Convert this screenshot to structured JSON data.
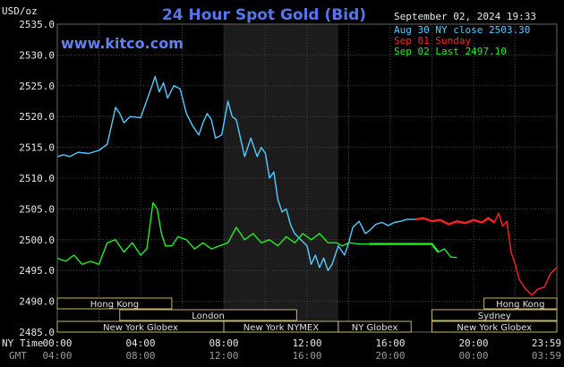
{
  "header": {
    "unit": "USD/oz",
    "title": "24 Hour Spot Gold (Bid)",
    "timestamp": "September 02, 2024 19:33",
    "site": "www.kitco.com"
  },
  "colors": {
    "aug30": "#55ccff",
    "sep01": "#ff2222",
    "sep02": "#22ee22",
    "grid": "#444444",
    "title": "#5577ee"
  },
  "legend": [
    {
      "label": "Aug 30 NY close 2503.30",
      "color": "#55ccff"
    },
    {
      "label": "Sep 01 Sunday",
      "color": "#ff2222"
    },
    {
      "label": "Sep 02 Last 2497.10",
      "color": "#22ee22"
    }
  ],
  "axis_labels": {
    "ny_time": "NY Time",
    "gmt": "GMT"
  },
  "sessions": [
    {
      "label": "Hong Kong",
      "start": 0,
      "end": 5.5,
      "row": 0
    },
    {
      "label": "London",
      "start": 3,
      "end": 11.5,
      "row": 1
    },
    {
      "label": "New York Globex",
      "start": 0,
      "end": 8,
      "row": 2
    },
    {
      "label": "New York NYMEX",
      "start": 8,
      "end": 13.5,
      "row": 2
    },
    {
      "label": "NY Globex",
      "start": 13.5,
      "end": 17,
      "row": 2
    },
    {
      "label": "Hong Kong",
      "start": 20.5,
      "end": 24,
      "row": 0
    },
    {
      "label": "Sydney",
      "start": 18,
      "end": 24,
      "row": 1
    },
    {
      "label": "New York Globex",
      "start": 18,
      "end": 24,
      "row": 2
    }
  ],
  "chart_data": {
    "type": "line",
    "title": "24 Hour Spot Gold (Bid)",
    "ylabel": "USD/oz",
    "ylim": [
      2485,
      2535
    ],
    "yticks": [
      "2485.0",
      "2490.0",
      "2495.0",
      "2500.0",
      "2505.0",
      "2510.0",
      "2515.0",
      "2520.0",
      "2525.0",
      "2530.0",
      "2535.0"
    ],
    "xlim": [
      0,
      24
    ],
    "xticks_ny": [
      "00:00",
      "04:00",
      "08:00",
      "12:00",
      "16:00",
      "20:00",
      "23:59"
    ],
    "xticks_gmt": [
      "04:00",
      "08:00",
      "12:00",
      "16:00",
      "20:00",
      "00:00",
      "03:59"
    ],
    "nymex_shade": [
      8,
      13.5
    ],
    "grid": true,
    "legend_placement": "top-right",
    "series": [
      {
        "name": "Aug 30 NY close 2503.30",
        "x": [
          0,
          0.3,
          0.6,
          1,
          1.5,
          2,
          2.4,
          2.8,
          3,
          3.2,
          3.5,
          4,
          4.5,
          4.7,
          4.9,
          5.1,
          5.3,
          5.6,
          5.9,
          6.2,
          6.5,
          6.8,
          7,
          7.2,
          7.4,
          7.6,
          7.9,
          8.2,
          8.4,
          8.6,
          8.8,
          9,
          9.3,
          9.6,
          9.8,
          10,
          10.2,
          10.4,
          10.6,
          10.8,
          11,
          11.2,
          11.4,
          11.7,
          12,
          12.2,
          12.4,
          12.6,
          12.8,
          13,
          13.2,
          13.5,
          13.8,
          14,
          14.2,
          14.5,
          14.8,
          15,
          15.3,
          15.6,
          15.9,
          16.2,
          16.5,
          16.8,
          17,
          17.2
        ],
        "values": [
          2513.5,
          2513.8,
          2513.5,
          2514.2,
          2514,
          2514.5,
          2515.5,
          2521.5,
          2520.5,
          2519,
          2520,
          2519.8,
          2524.5,
          2526.5,
          2524,
          2525.5,
          2523,
          2525,
          2524.5,
          2520.5,
          2518.5,
          2517,
          2519,
          2520.5,
          2519.5,
          2516.5,
          2517,
          2522.5,
          2520,
          2519.5,
          2516.5,
          2513.5,
          2516.5,
          2513.5,
          2515,
          2514,
          2510,
          2511,
          2506.5,
          2504.5,
          2505,
          2502.5,
          2501,
          2500,
          2499,
          2496,
          2497.5,
          2495.5,
          2497,
          2495,
          2496,
          2499,
          2497.5,
          2499.5,
          2502,
          2503,
          2501,
          2501.5,
          2502.5,
          2502.8,
          2502.3,
          2502.8,
          2503,
          2503.3,
          2503.3,
          2503.3
        ]
      },
      {
        "name": "Sep 01 Sunday",
        "x": [
          17.2,
          17.6,
          18,
          18.4,
          18.8,
          19.2,
          19.6,
          20,
          20.4,
          20.7,
          21,
          21.2,
          21.4,
          21.6,
          21.8,
          22,
          22.2,
          22.5,
          22.8,
          23.1,
          23.4,
          23.7,
          23.99
        ],
        "values": [
          2503.3,
          2503.5,
          2503,
          2503.2,
          2502.5,
          2503,
          2502.7,
          2503.2,
          2502.8,
          2503.5,
          2502.8,
          2504.3,
          2502.2,
          2503,
          2498,
          2496,
          2493.5,
          2492,
          2491,
          2492,
          2492.3,
          2494.5,
          2495.5
        ]
      },
      {
        "name": "Sep 02 Last 2497.10",
        "x": [
          0,
          0.4,
          0.8,
          1.2,
          1.6,
          2,
          2.4,
          2.8,
          3.2,
          3.6,
          4,
          4.3,
          4.6,
          4.8,
          5,
          5.2,
          5.5,
          5.8,
          6.2,
          6.6,
          7,
          7.4,
          7.8,
          8.2,
          8.6,
          9,
          9.4,
          9.8,
          10.2,
          10.6,
          11,
          11.4,
          11.8,
          12.2,
          12.6,
          13,
          13.4,
          13.7,
          14,
          14.5,
          15,
          15.5,
          16,
          16.5,
          17,
          17.5,
          18,
          18.3,
          18.6,
          18.9,
          19.2
        ],
        "values": [
          2497,
          2496.5,
          2497.5,
          2496,
          2496.5,
          2496,
          2499.5,
          2500,
          2498,
          2499.5,
          2497.5,
          2498.5,
          2506,
          2505,
          2501,
          2499,
          2499,
          2500.5,
          2500,
          2498.5,
          2499.5,
          2498.5,
          2499,
          2499.5,
          2502,
          2500,
          2501,
          2499.5,
          2500,
          2499,
          2500.5,
          2499.5,
          2501,
          2500,
          2501,
          2499.5,
          2499.5,
          2499,
          2499.5,
          2499.3,
          2499.3,
          2499.3,
          2499.3,
          2499.3,
          2499.3,
          2499.3,
          2499.3,
          2498,
          2498.5,
          2497.2,
          2497.1
        ]
      }
    ]
  }
}
